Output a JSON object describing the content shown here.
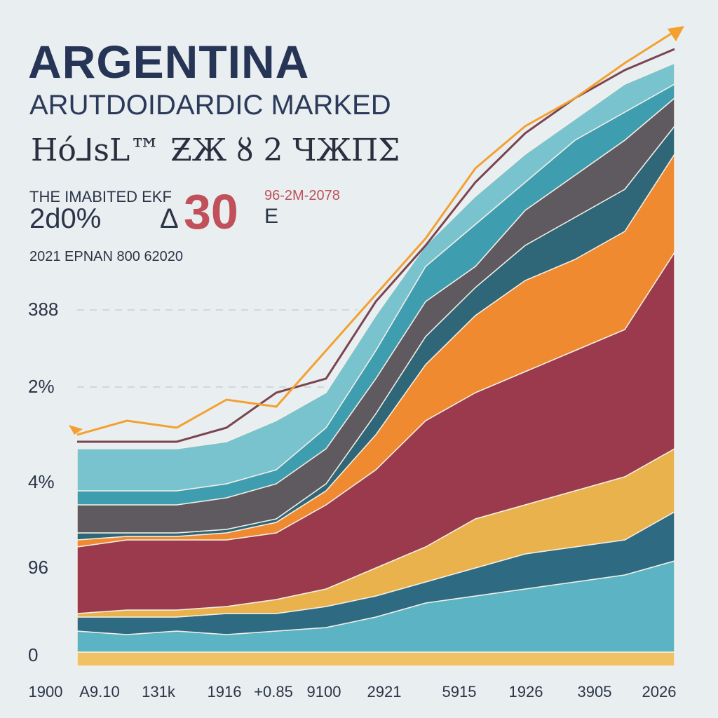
{
  "chart_data": {
    "type": "area",
    "stacked": true,
    "title": "ARGENTINA",
    "subtitle": "ARUTDOIDARDIC MARKED",
    "header_text": "Hó⅃sL™ ƵЖ ȣ 2 ЧЖΠΣ",
    "stat_label": "THE IMABITED EKF",
    "stat_value": "2d0%",
    "stat_delta_symbol": "Δ",
    "stat_big": "30",
    "stat_range": "96-2M-2078",
    "stat_suffix": "E",
    "footnote": "2021 EPNAN   800 62020",
    "x_tick_labels": [
      "1900",
      "A9.10",
      "131k",
      "1916",
      "+0.85",
      "9100",
      "2921",
      "5915",
      "1926",
      "3905",
      "2026"
    ],
    "y_tick_labels": [
      "388",
      "2%",
      "4%",
      "96",
      "0"
    ],
    "ylim": [
      0,
      91
    ],
    "grid": "dashed at y tick labels",
    "legend": "none",
    "x_points": 13,
    "series": [
      {
        "color": "#f0c266",
        "values": [
          2,
          2,
          2,
          2,
          2,
          2,
          2,
          2,
          2,
          2,
          2,
          2,
          2
        ]
      },
      {
        "color": "#5bb3c3",
        "values": [
          3,
          2.5,
          3,
          2.5,
          3,
          3.5,
          5,
          7,
          8,
          9,
          10,
          11,
          13
        ]
      },
      {
        "color": "#2e6a82",
        "values": [
          2,
          2.5,
          2,
          3,
          2.5,
          3,
          3,
          3,
          4,
          5,
          5,
          5,
          7
        ]
      },
      {
        "color": "#e9b24c",
        "values": [
          0.5,
          1,
          1,
          1,
          2,
          2.5,
          4,
          5,
          7,
          7,
          8,
          9,
          9
        ]
      },
      {
        "color": "#9b3a4c",
        "values": [
          9.5,
          10,
          10,
          9.5,
          9.5,
          12,
          14,
          18,
          18,
          19,
          20,
          21,
          28
        ]
      },
      {
        "color": "#ef8a30",
        "values": [
          1,
          0.5,
          0.5,
          1,
          1.5,
          2,
          5,
          8,
          11,
          13,
          13,
          14,
          14
        ]
      },
      {
        "color": "#2f6678",
        "values": [
          1,
          0.5,
          0.5,
          0.5,
          0.5,
          1,
          3,
          4,
          4,
          5,
          6,
          6,
          4
        ]
      },
      {
        "color": "#5e5a60",
        "values": [
          4,
          4,
          4,
          4.5,
          5,
          5,
          5,
          5,
          3,
          5,
          6,
          7,
          4
        ]
      },
      {
        "color": "#3f9db0",
        "values": [
          2,
          2,
          2,
          2,
          2,
          3,
          4,
          5,
          6,
          4,
          5,
          4,
          2
        ]
      },
      {
        "color": "#79c3cf",
        "values": [
          6,
          6,
          6,
          6,
          7,
          5,
          5,
          3,
          4,
          4,
          3,
          4,
          3
        ]
      }
    ],
    "lines": [
      {
        "color": "#7a4450",
        "values": [
          32,
          32,
          32,
          34,
          39,
          41,
          52,
          60,
          69,
          76,
          81,
          85,
          88
        ]
      },
      {
        "color": "#f4a030",
        "values": [
          33,
          35,
          34,
          38,
          37,
          45,
          53,
          61,
          71,
          77,
          81,
          86,
          90.5
        ],
        "arrow_end": true
      }
    ]
  }
}
